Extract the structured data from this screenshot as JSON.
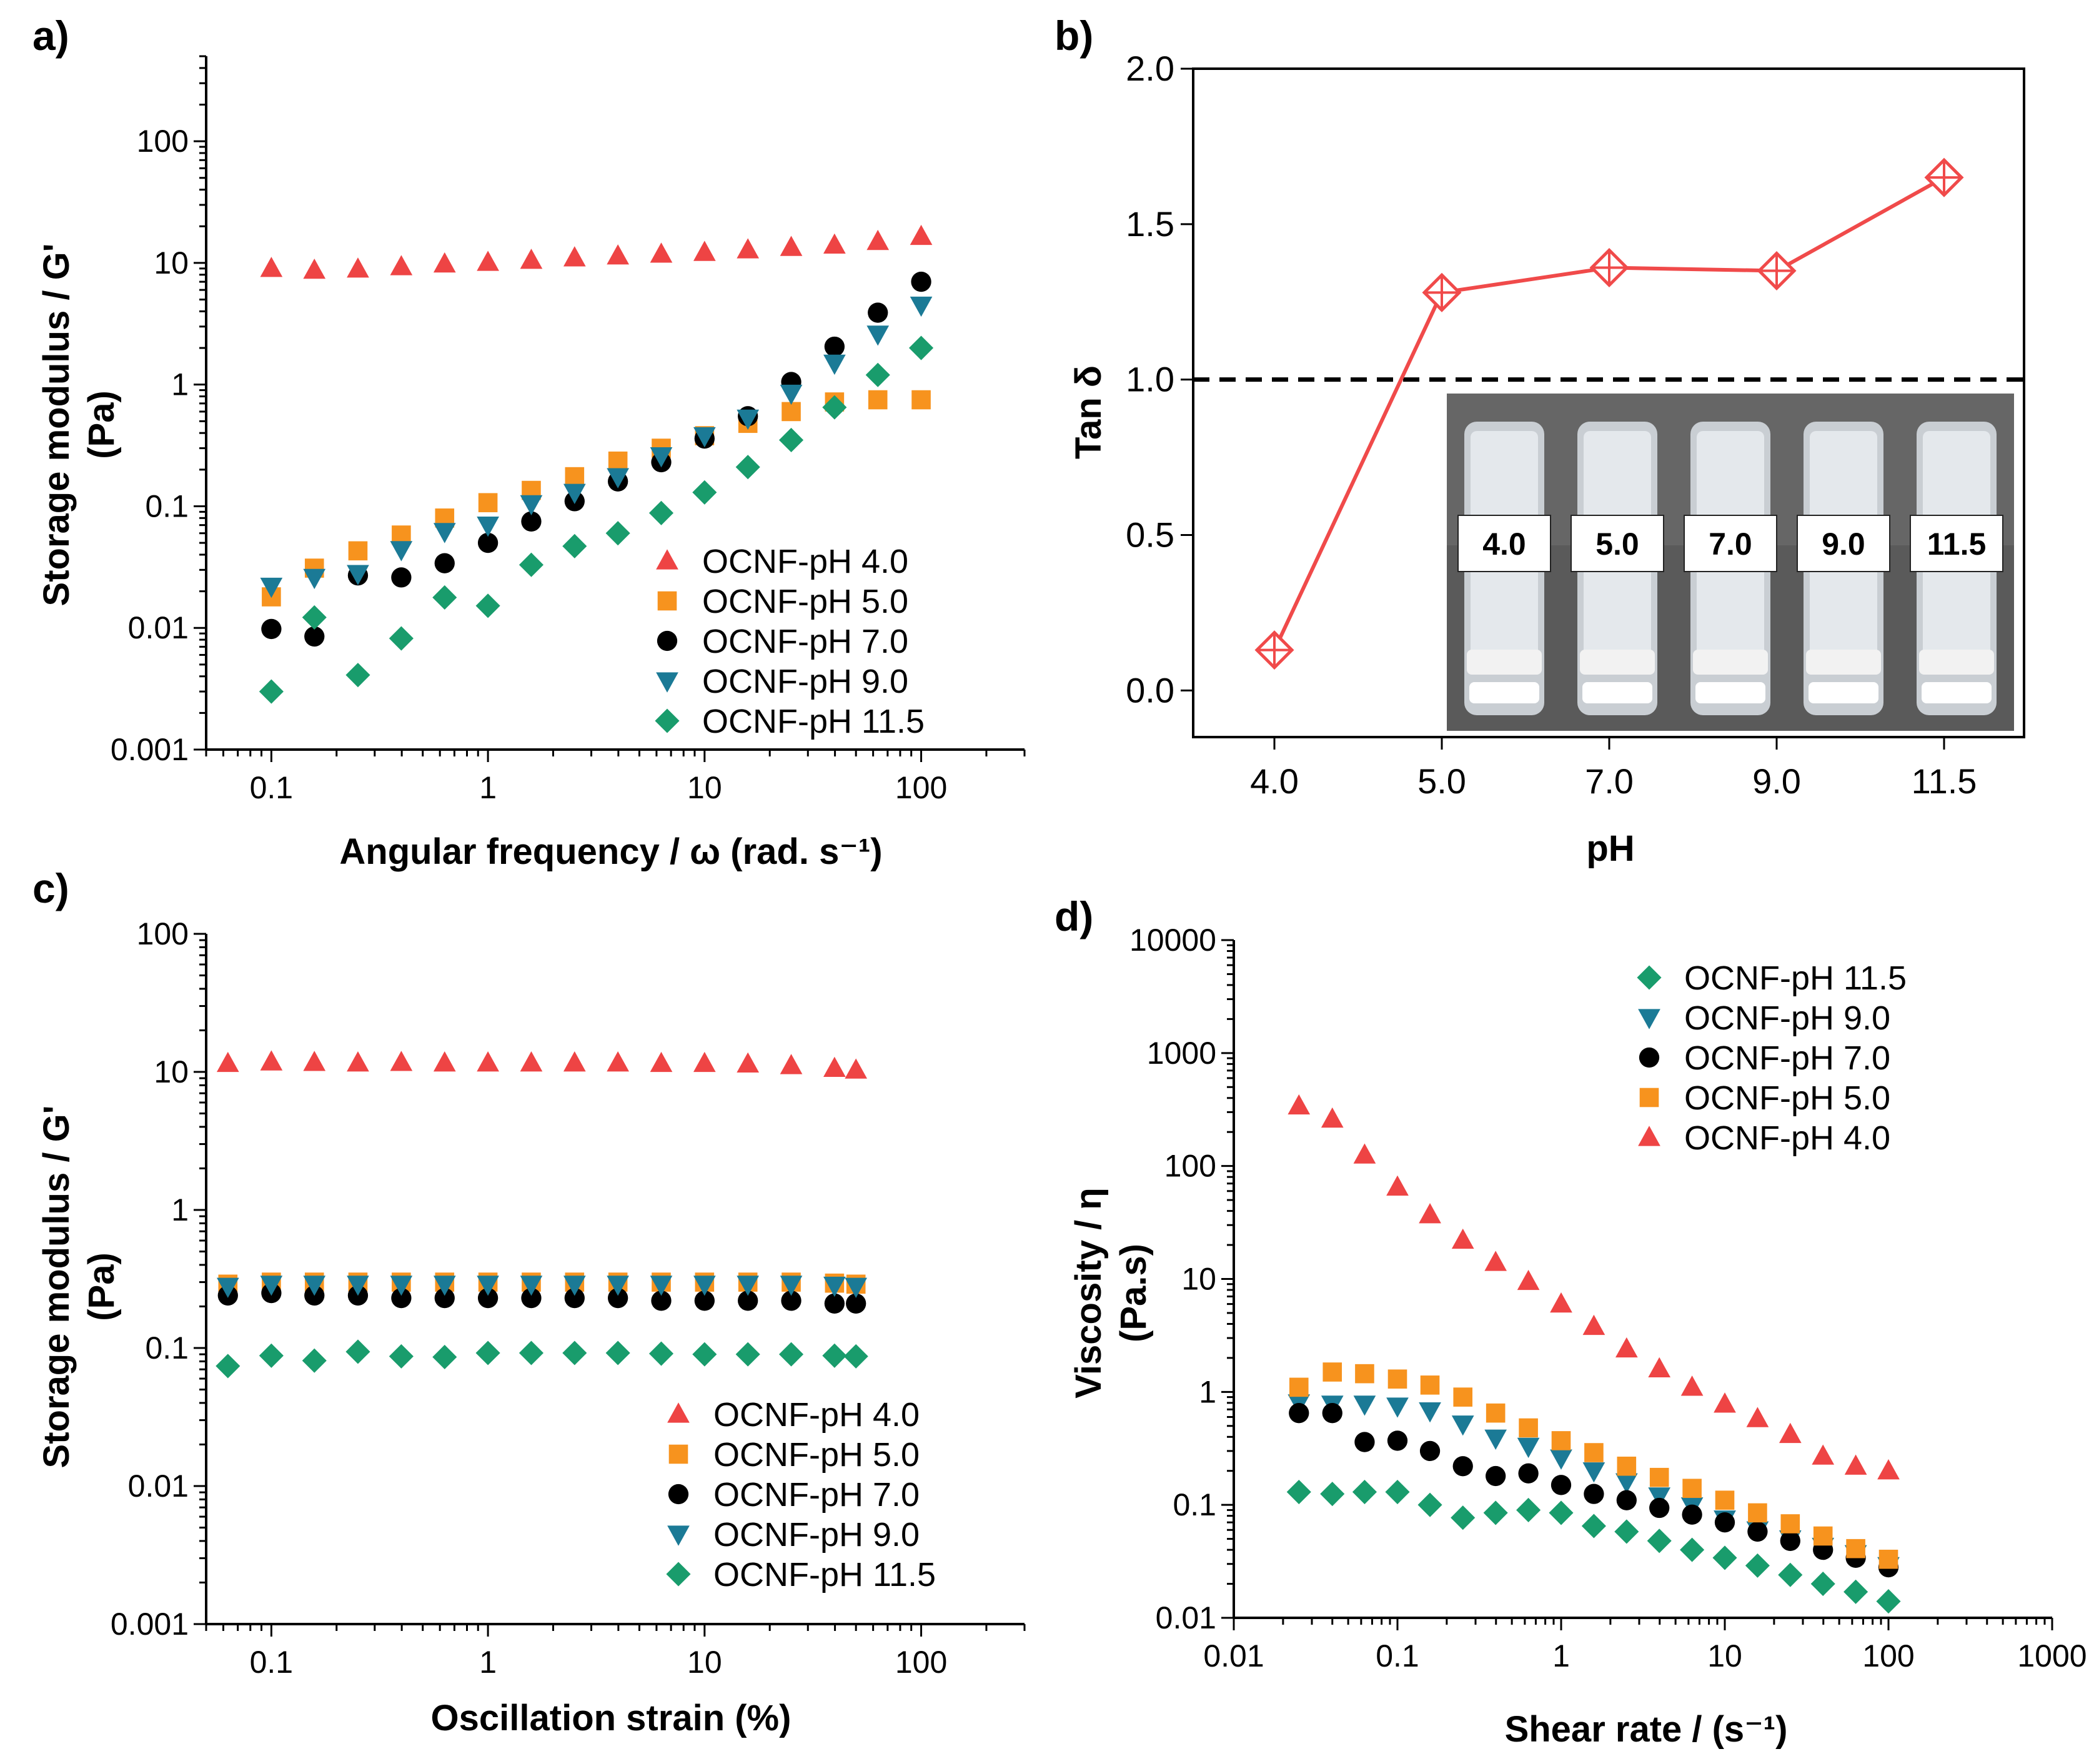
{
  "colors": {
    "pH 4.0": "#ee4444",
    "pH 5.0": "#f7931e",
    "pH 7.0": "#000000",
    "pH 9.0": "#1b7a96",
    "pH 11.5": "#199c6c",
    "line_b": "#f04a4a"
  },
  "chart_data": [
    {
      "panel": "a)",
      "type": "scatter",
      "xscale": "log",
      "yscale": "log",
      "xlabel": "Angular frequency / ω (rad. s⁻¹)",
      "ylabel": "Storage modulus / G'",
      "ylabel_unit": "(Pa)",
      "xlim": [
        0.05,
        300
      ],
      "ylim": [
        0.001,
        500
      ],
      "xticks": [
        0.1,
        1,
        10,
        100
      ],
      "xtick_labels": [
        "0.1",
        "1",
        "10",
        "100"
      ],
      "yticks": [
        0.001,
        0.01,
        0.1,
        1,
        10,
        100
      ],
      "ytick_labels": [
        "0.001",
        "0.01",
        "0.1",
        "1",
        "10",
        "100"
      ],
      "legend_position": "bottom-right",
      "x": [
        0.1,
        0.158,
        0.251,
        0.398,
        0.631,
        1,
        1.585,
        2.512,
        3.981,
        6.31,
        10,
        15.85,
        25.12,
        39.81,
        63.1,
        100
      ],
      "series": [
        {
          "name": "OCNF-pH 4.0",
          "key": "pH 4.0",
          "marker": "triangle-up",
          "values": [
            9,
            8.7,
            8.9,
            9.3,
            9.8,
            10.1,
            10.5,
            11,
            11.4,
            11.8,
            12.2,
            12.8,
            13.4,
            14,
            15,
            16.5
          ]
        },
        {
          "name": "OCNF-pH 5.0",
          "key": "pH 5.0",
          "marker": "square",
          "values": [
            0.018,
            0.031,
            0.043,
            0.058,
            0.08,
            0.107,
            0.135,
            0.175,
            0.235,
            0.3,
            0.38,
            0.48,
            0.6,
            0.72,
            0.75,
            0.75
          ]
        },
        {
          "name": "OCNF-pH 7.0",
          "key": "pH 7.0",
          "marker": "circle",
          "values": [
            0.0098,
            0.0085,
            0.027,
            0.026,
            0.034,
            0.05,
            0.075,
            0.11,
            0.16,
            0.23,
            0.36,
            0.55,
            1.05,
            2.05,
            3.9,
            7
          ]
        },
        {
          "name": "OCNF-pH 9.0",
          "key": "pH 9.0",
          "marker": "triangle-down",
          "values": [
            0.022,
            0.026,
            0.028,
            0.044,
            0.062,
            0.07,
            0.105,
            0.13,
            0.175,
            0.26,
            0.38,
            0.53,
            0.85,
            1.5,
            2.6,
            4.5
          ]
        },
        {
          "name": "OCNF-pH 11.5",
          "key": "pH 11.5",
          "marker": "diamond",
          "values": [
            0.003,
            0.0122,
            0.0041,
            0.0082,
            0.0178,
            0.0152,
            0.033,
            0.047,
            0.06,
            0.088,
            0.13,
            0.21,
            0.35,
            0.65,
            1.2,
            2
          ]
        }
      ]
    },
    {
      "panel": "b)",
      "type": "line",
      "xlabel": "pH",
      "ylabel": "Tan δ",
      "categories": [
        "4.0",
        "5.0",
        "7.0",
        "9.0",
        "11.5"
      ],
      "values": [
        0.13,
        1.28,
        1.36,
        1.35,
        1.65
      ],
      "ylim": [
        -0.15,
        2.0
      ],
      "yticks": [
        0.0,
        0.5,
        1.0,
        1.5,
        2.0
      ],
      "ytick_labels": [
        "0.0",
        "0.5",
        "1.0",
        "1.5",
        "2.0"
      ],
      "reference_line": 1.0,
      "marker": "diamond-cross",
      "inset_photo_labels": [
        "4.0",
        "5.0",
        "7.0",
        "9.0",
        "11.5"
      ]
    },
    {
      "panel": "c)",
      "type": "scatter",
      "xscale": "log",
      "yscale": "log",
      "xlabel": "Oscillation strain (%)",
      "ylabel": "Storage modulus / G'",
      "ylabel_unit": "(Pa)",
      "xlim": [
        0.05,
        300
      ],
      "ylim": [
        0.001,
        100
      ],
      "xticks": [
        0.1,
        1,
        10,
        100
      ],
      "xtick_labels": [
        "0.1",
        "1",
        "10",
        "100"
      ],
      "yticks": [
        0.001,
        0.01,
        0.1,
        1,
        10,
        100
      ],
      "ytick_labels": [
        "0.001",
        "0.01",
        "0.1",
        "1",
        "10",
        "100"
      ],
      "legend_position": "bottom-right",
      "x": [
        0.063,
        0.1,
        0.158,
        0.251,
        0.398,
        0.631,
        1,
        1.585,
        2.512,
        3.981,
        6.31,
        10,
        15.85,
        25.12,
        39.81,
        50
      ],
      "series": [
        {
          "name": "OCNF-pH 4.0",
          "key": "pH 4.0",
          "marker": "triangle-up",
          "values": [
            11.5,
            11.8,
            11.7,
            11.6,
            11.7,
            11.6,
            11.6,
            11.6,
            11.6,
            11.6,
            11.5,
            11.5,
            11.4,
            11.1,
            10.6,
            10.3
          ]
        },
        {
          "name": "OCNF-pH 5.0",
          "key": "pH 5.0",
          "marker": "square",
          "values": [
            0.29,
            0.3,
            0.3,
            0.3,
            0.3,
            0.3,
            0.3,
            0.3,
            0.3,
            0.3,
            0.3,
            0.3,
            0.3,
            0.3,
            0.295,
            0.29
          ]
        },
        {
          "name": "OCNF-pH 7.0",
          "key": "pH 7.0",
          "marker": "circle",
          "values": [
            0.24,
            0.25,
            0.24,
            0.24,
            0.23,
            0.23,
            0.23,
            0.23,
            0.23,
            0.23,
            0.22,
            0.22,
            0.22,
            0.22,
            0.21,
            0.21
          ]
        },
        {
          "name": "OCNF-pH 9.0",
          "key": "pH 9.0",
          "marker": "triangle-down",
          "values": [
            0.28,
            0.29,
            0.29,
            0.29,
            0.29,
            0.29,
            0.29,
            0.29,
            0.29,
            0.29,
            0.29,
            0.29,
            0.29,
            0.29,
            0.285,
            0.28
          ]
        },
        {
          "name": "OCNF-pH 11.5",
          "key": "pH 11.5",
          "marker": "diamond",
          "values": [
            0.074,
            0.088,
            0.081,
            0.094,
            0.087,
            0.086,
            0.092,
            0.092,
            0.092,
            0.092,
            0.091,
            0.09,
            0.09,
            0.09,
            0.088,
            0.087
          ]
        }
      ]
    },
    {
      "panel": "d)",
      "type": "scatter",
      "xscale": "log",
      "yscale": "log",
      "xlabel": "Shear rate / (s⁻¹)",
      "ylabel": "Viscosity / η",
      "ylabel_unit": "(Pa.s)",
      "xlim": [
        0.01,
        1000
      ],
      "ylim": [
        0.01,
        10000
      ],
      "xticks": [
        0.01,
        0.1,
        1,
        10,
        100,
        1000
      ],
      "xtick_labels": [
        "0.01",
        "0.1",
        "1",
        "10",
        "100",
        "1000"
      ],
      "yticks": [
        0.01,
        0.1,
        1,
        10,
        100,
        1000,
        10000
      ],
      "ytick_labels": [
        "0.01",
        "0.1",
        "1",
        "10",
        "100",
        "1000",
        "10000"
      ],
      "legend_position": "top-right",
      "x": [
        0.025,
        0.04,
        0.063,
        0.1,
        0.158,
        0.251,
        0.398,
        0.631,
        1,
        1.585,
        2.512,
        3.981,
        6.31,
        10,
        15.85,
        25.12,
        39.81,
        63.1,
        100
      ],
      "series": [
        {
          "name": "OCNF-pH 11.5",
          "key": "pH 11.5",
          "marker": "diamond",
          "values": [
            0.13,
            0.125,
            0.13,
            0.13,
            0.1,
            0.077,
            0.085,
            0.09,
            0.085,
            0.065,
            0.058,
            0.048,
            0.04,
            0.034,
            0.029,
            0.024,
            0.02,
            0.017,
            0.014
          ]
        },
        {
          "name": "OCNF-pH 9.0",
          "key": "pH 9.0",
          "marker": "triangle-down",
          "values": [
            0.8,
            0.78,
            0.78,
            0.75,
            0.68,
            0.52,
            0.39,
            0.33,
            0.26,
            0.2,
            0.16,
            0.12,
            0.098,
            0.075,
            0.06,
            0.05,
            0.043,
            0.037,
            0.029
          ]
        },
        {
          "name": "OCNF-pH 7.0",
          "key": "pH 7.0",
          "marker": "circle",
          "values": [
            0.65,
            0.65,
            0.36,
            0.37,
            0.3,
            0.22,
            0.18,
            0.19,
            0.15,
            0.125,
            0.11,
            0.094,
            0.082,
            0.07,
            0.058,
            0.048,
            0.04,
            0.034,
            0.028
          ]
        },
        {
          "name": "OCNF-pH 5.0",
          "key": "pH 5.0",
          "marker": "square",
          "values": [
            1.1,
            1.5,
            1.45,
            1.3,
            1.15,
            0.9,
            0.65,
            0.48,
            0.37,
            0.29,
            0.22,
            0.175,
            0.14,
            0.11,
            0.085,
            0.068,
            0.053,
            0.041,
            0.033
          ]
        },
        {
          "name": "OCNF-pH 4.0",
          "key": "pH 4.0",
          "marker": "triangle-up",
          "values": [
            340,
            260,
            125,
            65,
            37,
            22,
            14,
            9.5,
            6,
            3.8,
            2.4,
            1.6,
            1.1,
            0.78,
            0.58,
            0.42,
            0.27,
            0.22,
            0.2
          ]
        }
      ]
    }
  ]
}
